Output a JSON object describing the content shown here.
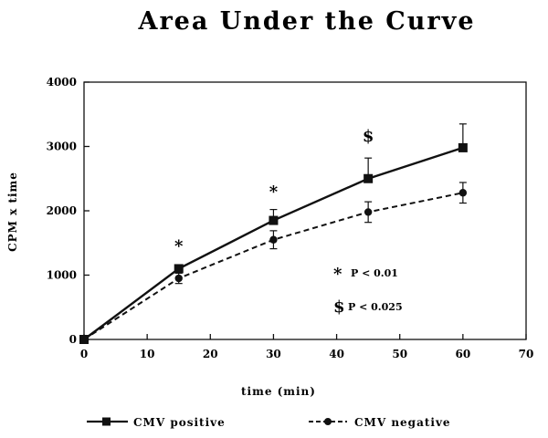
{
  "chart_data": {
    "type": "line",
    "title": "Area Under the Curve",
    "xlabel": "time (min)",
    "ylabel": "CPM x time",
    "xlim": [
      0,
      70
    ],
    "ylim": [
      0,
      4000
    ],
    "x_ticks": [
      0,
      10,
      20,
      30,
      40,
      50,
      60,
      70
    ],
    "y_ticks": [
      0,
      1000,
      2000,
      3000,
      4000
    ],
    "grid": false,
    "legend_position": "bottom",
    "series": [
      {
        "name": "CMV positive",
        "line_style": "solid",
        "marker": "square",
        "x": [
          0,
          15,
          30,
          45,
          60
        ],
        "y": [
          0,
          1100,
          1850,
          2500,
          2980
        ],
        "error": [
          0,
          60,
          170,
          320,
          370
        ]
      },
      {
        "name": "CMV negative",
        "line_style": "dashed",
        "marker": "circle",
        "x": [
          0,
          15,
          30,
          45,
          60
        ],
        "y": [
          0,
          950,
          1550,
          1980,
          2280
        ],
        "error": [
          0,
          80,
          140,
          160,
          160
        ]
      }
    ],
    "significance_marks": [
      {
        "symbol": "*",
        "x": 15,
        "y": 1370
      },
      {
        "symbol": "*",
        "x": 30,
        "y": 2210
      },
      {
        "symbol": "$",
        "x": 45,
        "y": 3080
      }
    ],
    "annotations": [
      {
        "symbol": "*",
        "text": "P < 0.01"
      },
      {
        "symbol": "$",
        "text": "P < 0.025"
      }
    ]
  }
}
